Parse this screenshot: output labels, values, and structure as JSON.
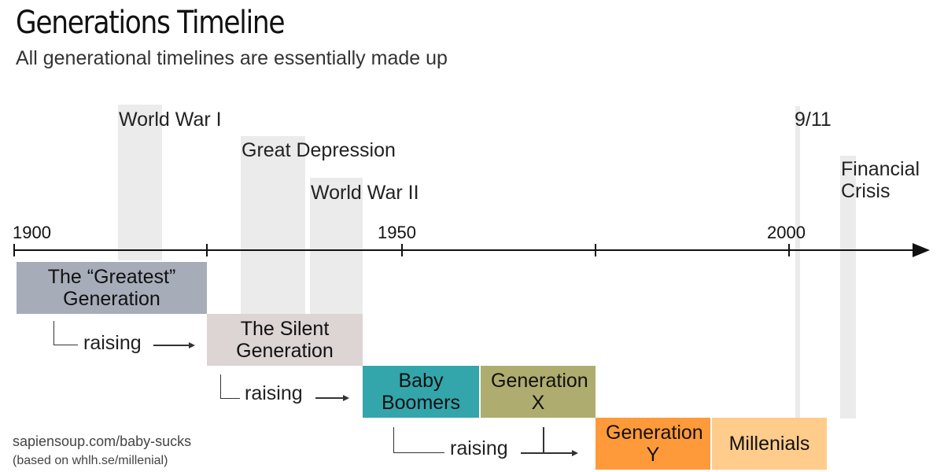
{
  "header": {
    "title": "Generations Timeline",
    "subtitle": "All generational timelines are essentially made up"
  },
  "axis": {
    "start_year": 1900,
    "end_year": 2010,
    "labels": [
      "1900",
      "1950",
      "2000"
    ]
  },
  "events": [
    {
      "label": "World War I",
      "start": 1914,
      "end": 1918
    },
    {
      "label": "Great Depression",
      "start": 1929,
      "end": 1939
    },
    {
      "label": "World War II",
      "start": 1939,
      "end": 1945
    },
    {
      "label": "9/11",
      "start": 2001,
      "end": 2001
    },
    {
      "label": "Financial Crisis",
      "start": 2007,
      "end": 2009
    }
  ],
  "generations": [
    {
      "label": "The “Greatest” Generation",
      "start": 1901,
      "end": 1925,
      "color": "#a6adb9"
    },
    {
      "label": "The Silent Generation",
      "start": 1925,
      "end": 1945,
      "color": "#ddd4d4"
    },
    {
      "label": "Baby Boomers",
      "start": 1946,
      "end": 1964,
      "color": "#33a6ab"
    },
    {
      "label": "Generation X",
      "start": 1965,
      "end": 1980,
      "color": "#aeac6f"
    },
    {
      "label": "Generation Y",
      "start": 1980,
      "end": 1995,
      "color": "#ff9a3a"
    },
    {
      "label": "Millenials",
      "start": 1995,
      "end": 2010,
      "color": "#ffcc8b"
    }
  ],
  "relations": {
    "raising_label": "raising"
  },
  "credits": {
    "source": "sapiensoup.com/baby-sucks",
    "based_on": "(based on whlh.se/millenial)"
  }
}
